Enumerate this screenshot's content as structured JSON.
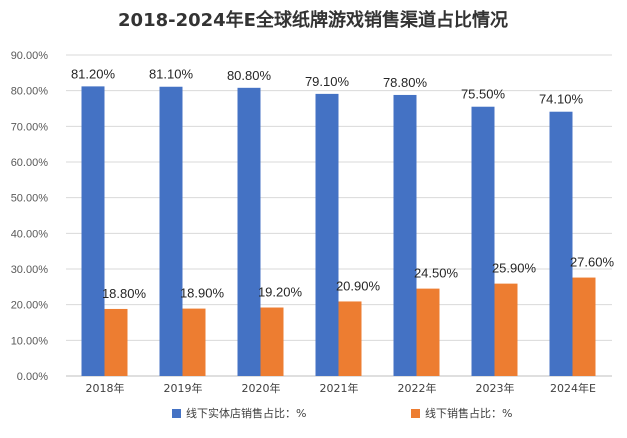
{
  "chart_data": {
    "type": "bar",
    "title": "2018-2024年E全球纸牌游戏销售渠道占比情况",
    "xlabel": "",
    "ylabel": "",
    "categories": [
      "2018年",
      "2019年",
      "2020年",
      "2021年",
      "2022年",
      "2023年",
      "2024年E"
    ],
    "ylim": [
      0,
      90
    ],
    "yticks": [
      "0.00%",
      "10.00%",
      "20.00%",
      "30.00%",
      "40.00%",
      "50.00%",
      "60.00%",
      "70.00%",
      "80.00%",
      "90.00%"
    ],
    "grid": true,
    "legend_position": "bottom",
    "series": [
      {
        "name": "线下实体店销售占比：%",
        "color": "#4472C4",
        "values": [
          81.2,
          81.1,
          80.8,
          79.1,
          78.8,
          75.5,
          74.1
        ],
        "labels": [
          "81.20%",
          "81.10%",
          "80.80%",
          "79.10%",
          "78.80%",
          "75.50%",
          "74.10%"
        ]
      },
      {
        "name": "线下销售占比：%",
        "color": "#ED7D31",
        "values": [
          18.8,
          18.9,
          19.2,
          20.9,
          24.5,
          25.9,
          27.6
        ],
        "labels": [
          "18.80%",
          "18.90%",
          "19.20%",
          "20.90%",
          "24.50%",
          "25.90%",
          "27.60%"
        ]
      }
    ]
  }
}
